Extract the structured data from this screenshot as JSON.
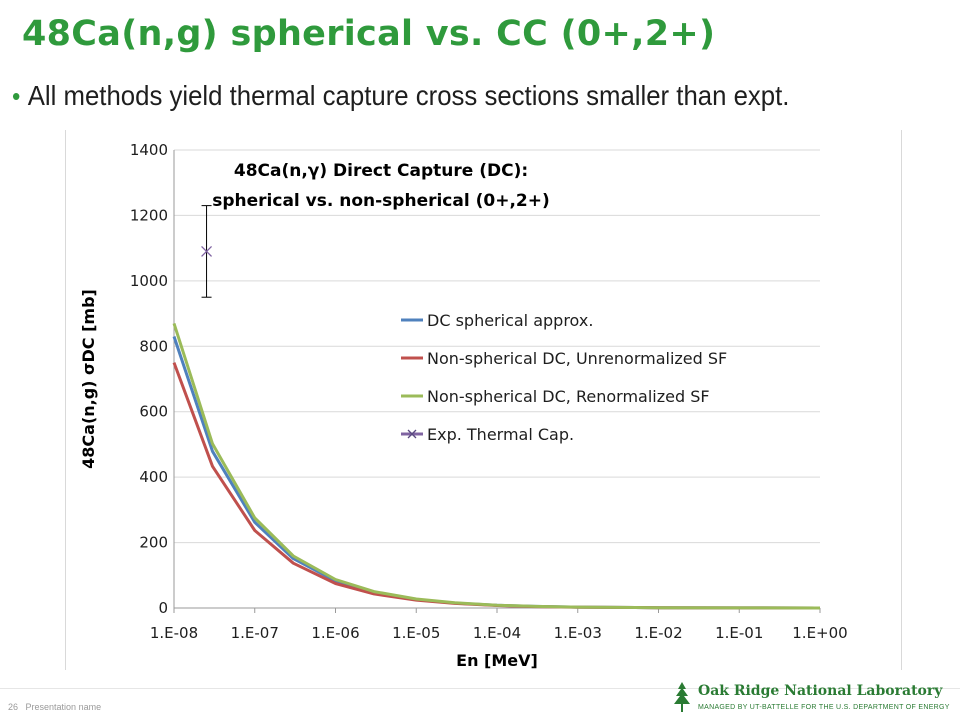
{
  "slide": {
    "title": "48Ca(n,g) spherical vs. CC (0+,2+)",
    "bullet": "All methods yield thermal capture cross sections smaller than expt."
  },
  "footer": {
    "page_number": "26",
    "presentation_name": "Presentation name",
    "org_name": "Oak Ridge National Laboratory",
    "org_sub": "MANAGED BY UT-BATTELLE FOR THE U.S. DEPARTMENT OF ENERGY"
  },
  "chart_data": {
    "type": "line",
    "title_line1": "48Ca(n,γ) Direct Capture (DC):",
    "title_line2": "spherical vs. non-spherical (0+,2+)",
    "xlabel": "En [MeV]",
    "ylabel": "48Ca(n,g) σDC [mb]",
    "x_scale": "log",
    "x_ticks": [
      "1.E-08",
      "1.E-07",
      "1.E-06",
      "1.E-05",
      "1.E-04",
      "1.E-03",
      "1.E-02",
      "1.E-01",
      "1.E+00"
    ],
    "y_ticks": [
      "0",
      "200",
      "400",
      "600",
      "800",
      "1000",
      "1200",
      "1400"
    ],
    "ylim": [
      0,
      1400
    ],
    "xlim": [
      1e-08,
      1.0
    ],
    "grid": "horizontal",
    "legend_position": "center-right",
    "series": [
      {
        "name": "DC spherical approx.",
        "color": "#4f81bd",
        "x": [
          1e-08,
          3e-08,
          1e-07,
          3e-07,
          1e-06,
          3e-06,
          1e-05,
          3e-05,
          0.0001,
          0.0003,
          0.001,
          0.01,
          0.1,
          1.0
        ],
        "y": [
          830,
          479,
          262,
          151,
          83,
          48,
          26,
          15,
          8.3,
          4.8,
          2.6,
          0.8,
          0.3,
          0.1
        ]
      },
      {
        "name": "Non-spherical DC, Unrenormalized SF",
        "color": "#c0504d",
        "x": [
          1e-08,
          3e-08,
          1e-07,
          3e-07,
          1e-06,
          3e-06,
          1e-05,
          3e-05,
          0.0001,
          0.0003,
          0.001,
          0.01,
          0.1,
          1.0
        ],
        "y": [
          750,
          433,
          237,
          137,
          75,
          43,
          24,
          14,
          7.5,
          4.3,
          2.4,
          0.8,
          0.3,
          0.1
        ]
      },
      {
        "name": "Non-spherical DC, Renormalized SF",
        "color": "#9bbb59",
        "x": [
          1e-08,
          3e-08,
          1e-07,
          3e-07,
          1e-06,
          3e-06,
          1e-05,
          3e-05,
          0.0001,
          0.0003,
          0.001,
          0.01,
          0.1,
          1.0
        ],
        "y": [
          870,
          502,
          275,
          159,
          87,
          50,
          27.5,
          16,
          8.7,
          5.0,
          2.8,
          0.9,
          0.3,
          0.1
        ]
      }
    ],
    "experiment": {
      "name": "Exp. Thermal Cap.",
      "color": "#8064a2",
      "x": 2.53e-08,
      "y": 1090,
      "y_err_low": 950,
      "y_err_high": 1230
    }
  }
}
